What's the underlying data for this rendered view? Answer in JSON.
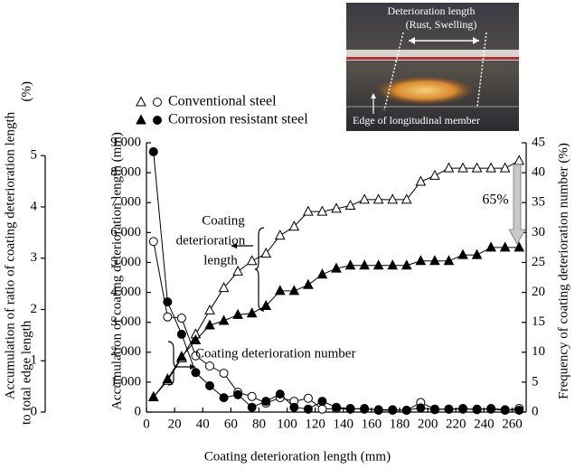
{
  "chart_data": {
    "type": "line",
    "x_label": "Coating deterioration length (mm)",
    "y_label": "Accumulation of coating deterioration length (mm)",
    "y2_label": "Frequency of coating deterioration number (%)",
    "y3_label": [
      "Accumulation of ratio of coating deterioration length",
      "to total edge length",
      "(%)"
    ],
    "x": [
      5,
      15,
      25,
      35,
      45,
      55,
      65,
      75,
      85,
      95,
      105,
      115,
      125,
      135,
      145,
      155,
      165,
      175,
      185,
      195,
      205,
      215,
      225,
      235,
      245,
      255,
      265
    ],
    "xlim": [
      0,
      270
    ],
    "xticks": [
      0,
      20,
      40,
      60,
      80,
      100,
      120,
      140,
      160,
      180,
      200,
      220,
      240,
      260
    ],
    "ylim": [
      0,
      9000
    ],
    "yticks": [
      0,
      {
        "value": 1000,
        "label": "1 000"
      },
      {
        "value": 2000,
        "label": "2 000"
      },
      {
        "value": 3000,
        "label": "3 000"
      },
      {
        "value": 4000,
        "label": "4 000"
      },
      {
        "value": 5000,
        "label": "5 000"
      },
      {
        "value": 6000,
        "label": "6 000"
      },
      {
        "value": 7000,
        "label": "7 000"
      },
      {
        "value": 8000,
        "label": "8 000"
      },
      {
        "value": 9000,
        "label": "9 000"
      }
    ],
    "y2lim": [
      0,
      45
    ],
    "y2ticks": [
      0,
      5,
      10,
      15,
      20,
      25,
      30,
      35,
      40,
      45
    ],
    "y3lim": [
      0,
      5.25
    ],
    "y3ticks": [
      0,
      1,
      2,
      3,
      4,
      5
    ],
    "series": [
      {
        "name": "Conventional steel",
        "color": "#000000",
        "filled": false,
        "length": [
          500,
          1050,
          1800,
          2600,
          3400,
          4150,
          4700,
          5050,
          5300,
          5900,
          6200,
          6700,
          6700,
          6800,
          6900,
          7100,
          7100,
          7100,
          7100,
          7700,
          7900,
          8150,
          8150,
          8150,
          8150,
          8150,
          8400
        ],
        "number": [
          28.5,
          15.9,
          15.7,
          9.4,
          7.7,
          6.5,
          3.3,
          2.6,
          1.5,
          2.4,
          1.8,
          2.3,
          0.5,
          0.6,
          0.5,
          0.6,
          0.3,
          0.3,
          0.3,
          1.6,
          0.5,
          0.5,
          0.5,
          0.5,
          0.5,
          0.3,
          0.6
        ]
      },
      {
        "name": "Corrosion resistant steel",
        "color": "#000000",
        "filled": true,
        "length": [
          500,
          1100,
          1850,
          2400,
          2900,
          3050,
          3250,
          3300,
          3550,
          4050,
          4050,
          4250,
          4600,
          4800,
          4900,
          4900,
          4900,
          4900,
          4900,
          5050,
          5050,
          5050,
          5250,
          5250,
          5500,
          5500,
          5500
        ],
        "number": [
          43.5,
          18.4,
          13,
          6.6,
          4.4,
          2.4,
          2.9,
          0.8,
          1.8,
          3.0,
          0.8,
          0.5,
          1.8,
          0.8,
          0.6,
          0.5,
          0.4,
          0.4,
          0.3,
          0.7,
          0.4,
          0.5,
          0.6,
          0.4,
          0.6,
          0.4,
          0.3
        ]
      }
    ],
    "annotations": [
      [
        "Coating",
        "deterioration",
        "length"
      ],
      "Coating deterioration number",
      "65%"
    ]
  },
  "photo": {
    "labels": [
      "Deterioration length",
      "(Rust, Swelling)",
      "Edge of longitudinal member"
    ]
  }
}
